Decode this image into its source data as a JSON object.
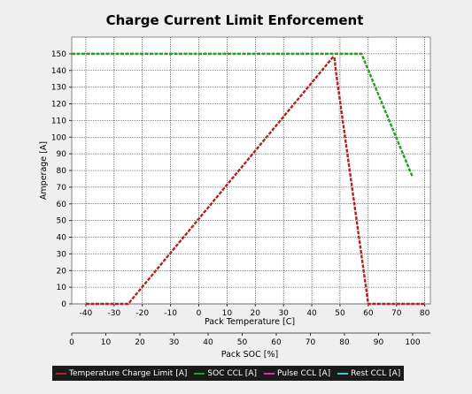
{
  "chart_data": {
    "type": "line",
    "title": "Charge Current Limit Enforcement",
    "ylabel": "Amperage [A]",
    "xlabel": "Pack Temperature [C]",
    "x2label": "Pack SOC [%]",
    "ylim": [
      0,
      160
    ],
    "yticks": [
      0,
      10,
      20,
      30,
      40,
      50,
      60,
      70,
      80,
      90,
      100,
      110,
      120,
      130,
      140,
      150
    ],
    "xlim": [
      -45,
      82
    ],
    "xticks": [
      -40,
      -30,
      -20,
      -10,
      0,
      10,
      20,
      30,
      40,
      50,
      60,
      70,
      80
    ],
    "x2lim": [
      0,
      100
    ],
    "x2ticks": [
      0,
      10,
      20,
      30,
      40,
      50,
      60,
      70,
      80,
      90,
      100
    ],
    "grid": true,
    "legend_position": "bottom",
    "series": [
      {
        "name": "Temperature Charge Limit [A]",
        "axis": "temperature",
        "color": "#b22222",
        "x": [
          -40,
          -25,
          47.5,
          48,
          48.5,
          60,
          80
        ],
        "y": [
          0,
          0,
          148,
          148,
          140,
          0,
          0
        ]
      },
      {
        "name": "SOC CCL [A]",
        "axis": "soc",
        "color": "#22a022",
        "x": [
          0,
          85,
          100
        ],
        "y": [
          150,
          150,
          76
        ]
      },
      {
        "name": "Pulse CCL [A]",
        "axis": "soc",
        "color": "#cc33cc",
        "x": [],
        "y": []
      },
      {
        "name": "Rest CCL [A]",
        "axis": "soc",
        "color": "#33cccc",
        "x": [],
        "y": []
      }
    ]
  }
}
